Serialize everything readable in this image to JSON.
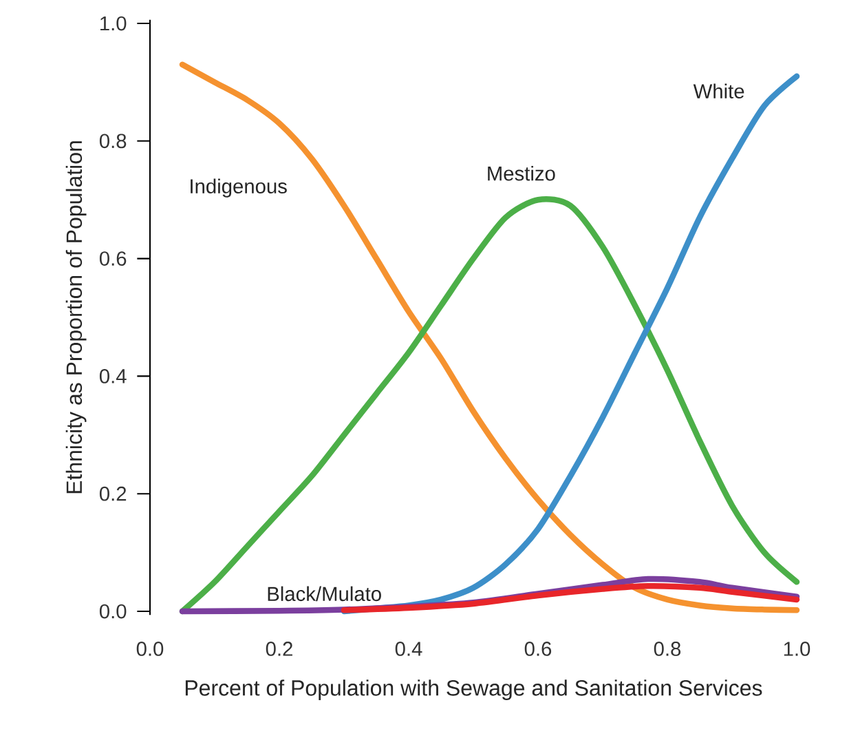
{
  "chart_data": {
    "type": "line",
    "xlabel": "Percent of Population with Sewage and Sanitation Services",
    "ylabel": "Ethnicity as Proportion of Population",
    "xlim": [
      0,
      1
    ],
    "ylim": [
      0,
      1
    ],
    "xticks": [
      {
        "value": 0,
        "label": "0.0"
      },
      0.2,
      0.4,
      0.6,
      0.8,
      {
        "value": 1,
        "label": "1.0"
      }
    ],
    "yticks": [
      {
        "value": 0,
        "label": "0.0"
      },
      0.2,
      0.4,
      0.6,
      0.8,
      {
        "value": 1,
        "label": "1.0"
      }
    ],
    "series": [
      {
        "name": "Indigenous",
        "color": "#f5922f",
        "x": [
          0.05,
          0.1,
          0.15,
          0.2,
          0.25,
          0.3,
          0.35,
          0.4,
          0.45,
          0.5,
          0.55,
          0.6,
          0.65,
          0.7,
          0.75,
          0.8,
          0.85,
          0.9,
          0.95,
          1.0
        ],
        "values": [
          0.93,
          0.9,
          0.87,
          0.83,
          0.77,
          0.69,
          0.6,
          0.51,
          0.43,
          0.34,
          0.26,
          0.19,
          0.13,
          0.08,
          0.04,
          0.02,
          0.01,
          0.005,
          0.003,
          0.002
        ]
      },
      {
        "name": "Mestizo",
        "color": "#4caf48",
        "x": [
          0.05,
          0.1,
          0.15,
          0.2,
          0.25,
          0.3,
          0.35,
          0.4,
          0.45,
          0.5,
          0.55,
          0.6,
          0.65,
          0.7,
          0.75,
          0.8,
          0.85,
          0.9,
          0.95,
          1.0
        ],
        "values": [
          0.0,
          0.05,
          0.11,
          0.17,
          0.23,
          0.3,
          0.37,
          0.44,
          0.52,
          0.6,
          0.67,
          0.7,
          0.69,
          0.62,
          0.52,
          0.41,
          0.29,
          0.18,
          0.1,
          0.05
        ]
      },
      {
        "name": "White",
        "color": "#3d8fc9",
        "x": [
          0.3,
          0.35,
          0.4,
          0.45,
          0.5,
          0.55,
          0.6,
          0.65,
          0.7,
          0.75,
          0.8,
          0.85,
          0.9,
          0.95,
          1.0
        ],
        "values": [
          0.0,
          0.005,
          0.01,
          0.02,
          0.04,
          0.08,
          0.14,
          0.23,
          0.33,
          0.44,
          0.55,
          0.67,
          0.77,
          0.86,
          0.91
        ]
      },
      {
        "name": "Black/Mulato",
        "color": "#7b3f9e",
        "x": [
          0.05,
          0.2,
          0.3,
          0.4,
          0.5,
          0.6,
          0.7,
          0.77,
          0.85,
          0.9,
          1.0
        ],
        "values": [
          0.0,
          0.001,
          0.003,
          0.008,
          0.015,
          0.03,
          0.045,
          0.055,
          0.05,
          0.04,
          0.025
        ]
      },
      {
        "color": "#e8262a",
        "x": [
          0.3,
          0.4,
          0.5,
          0.6,
          0.7,
          0.77,
          0.85,
          0.9,
          1.0
        ],
        "values": [
          0.002,
          0.006,
          0.013,
          0.027,
          0.038,
          0.043,
          0.04,
          0.033,
          0.02
        ]
      }
    ]
  }
}
